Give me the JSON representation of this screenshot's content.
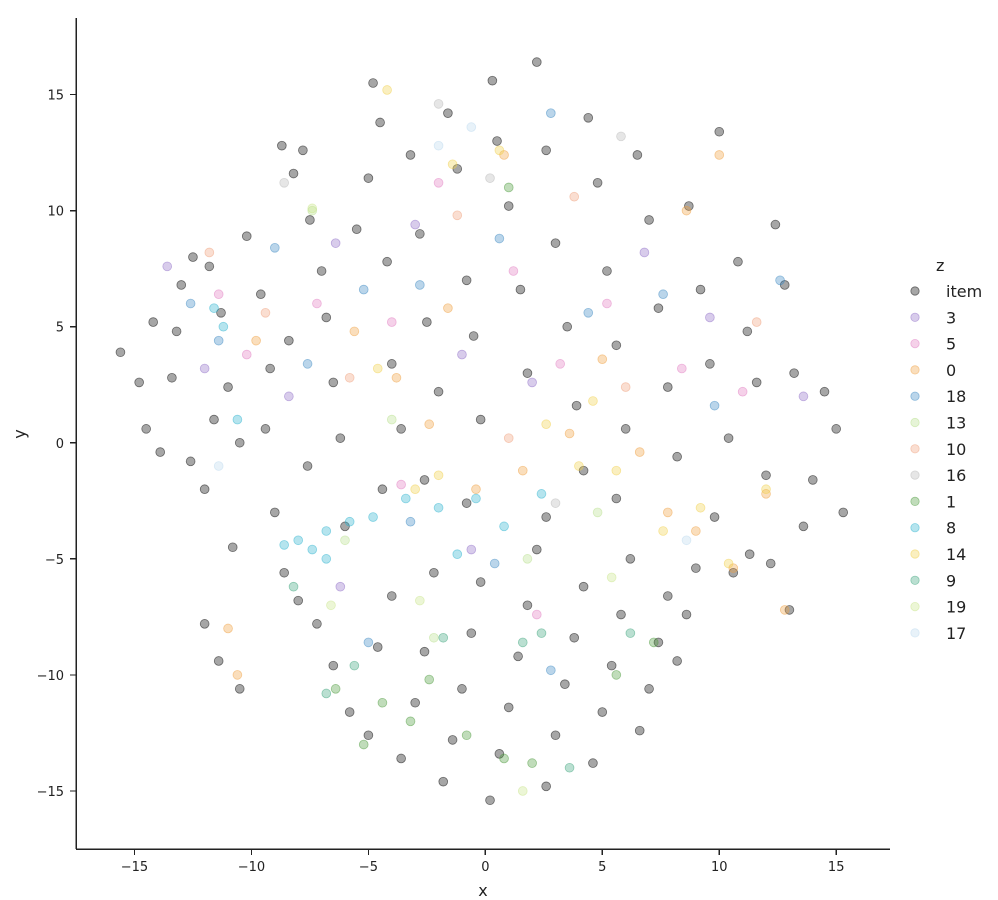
{
  "chart_data": {
    "type": "scatter",
    "xlabel": "x",
    "ylabel": "y",
    "xlim": [
      -17.5,
      17.3
    ],
    "ylim": [
      -17.5,
      18.3
    ],
    "x_ticks": [
      -15,
      -10,
      -5,
      0,
      5,
      10,
      15
    ],
    "x_tick_labels": [
      "−15",
      "−10",
      "−5",
      "0",
      "5",
      "10",
      "15"
    ],
    "y_ticks": [
      -15,
      -10,
      -5,
      0,
      5,
      10,
      15
    ],
    "y_tick_labels": [
      "−15",
      "−10",
      "−5",
      "0",
      "5",
      "10",
      "15"
    ],
    "grid": false,
    "legend_title": "z",
    "legend_placement": "right",
    "marker_alpha": 0.35,
    "series": [
      {
        "name": "item",
        "color": "#000000",
        "points": [
          [
            -15.6,
            3.9
          ],
          [
            -14.8,
            2.6
          ],
          [
            -14.5,
            0.6
          ],
          [
            -13.9,
            -0.4
          ],
          [
            -13.2,
            4.8
          ],
          [
            -13.0,
            6.8
          ],
          [
            -12.5,
            8.0
          ],
          [
            -11.8,
            7.6
          ],
          [
            -11.3,
            5.6
          ],
          [
            -11.0,
            2.4
          ],
          [
            -10.5,
            0.0
          ],
          [
            -10.2,
            8.9
          ],
          [
            -9.6,
            6.4
          ],
          [
            -9.2,
            3.2
          ],
          [
            -8.7,
            12.8
          ],
          [
            -8.2,
            11.6
          ],
          [
            -7.8,
            12.6
          ],
          [
            -7.5,
            9.6
          ],
          [
            -7.0,
            7.4
          ],
          [
            -6.8,
            5.4
          ],
          [
            -6.5,
            2.6
          ],
          [
            -6.2,
            0.2
          ],
          [
            -5.5,
            9.2
          ],
          [
            -5.0,
            11.4
          ],
          [
            -4.8,
            15.5
          ],
          [
            -4.5,
            13.8
          ],
          [
            -4.2,
            7.8
          ],
          [
            -4.0,
            3.4
          ],
          [
            -3.6,
            0.6
          ],
          [
            -3.2,
            12.4
          ],
          [
            -2.8,
            9.0
          ],
          [
            -2.5,
            5.2
          ],
          [
            -2.0,
            2.2
          ],
          [
            -1.6,
            14.2
          ],
          [
            -1.2,
            11.8
          ],
          [
            -0.8,
            7.0
          ],
          [
            -0.5,
            4.6
          ],
          [
            -0.2,
            1.0
          ],
          [
            0.3,
            15.6
          ],
          [
            0.5,
            13.0
          ],
          [
            1.0,
            10.2
          ],
          [
            1.5,
            6.6
          ],
          [
            1.8,
            3.0
          ],
          [
            2.2,
            16.4
          ],
          [
            2.6,
            12.6
          ],
          [
            3.0,
            8.6
          ],
          [
            3.5,
            5.0
          ],
          [
            3.9,
            1.6
          ],
          [
            4.4,
            14.0
          ],
          [
            4.8,
            11.2
          ],
          [
            5.2,
            7.4
          ],
          [
            5.6,
            4.2
          ],
          [
            6.0,
            0.6
          ],
          [
            6.5,
            12.4
          ],
          [
            7.0,
            9.6
          ],
          [
            7.4,
            5.8
          ],
          [
            7.8,
            2.4
          ],
          [
            8.2,
            -0.6
          ],
          [
            8.7,
            10.2
          ],
          [
            9.2,
            6.6
          ],
          [
            9.6,
            3.4
          ],
          [
            10.0,
            13.4
          ],
          [
            10.4,
            0.2
          ],
          [
            10.8,
            7.8
          ],
          [
            11.2,
            4.8
          ],
          [
            11.6,
            2.6
          ],
          [
            12.0,
            -1.4
          ],
          [
            12.4,
            9.4
          ],
          [
            12.8,
            6.8
          ],
          [
            13.2,
            3.0
          ],
          [
            13.6,
            -3.6
          ],
          [
            14.0,
            -1.6
          ],
          [
            14.5,
            2.2
          ],
          [
            15.0,
            0.6
          ],
          [
            15.3,
            -3.0
          ],
          [
            13.0,
            -7.2
          ],
          [
            12.2,
            -5.2
          ],
          [
            11.3,
            -4.8
          ],
          [
            10.6,
            -5.6
          ],
          [
            9.8,
            -3.2
          ],
          [
            -12.0,
            -7.8
          ],
          [
            -11.4,
            -9.4
          ],
          [
            -10.5,
            -10.6
          ],
          [
            -12.0,
            -2.0
          ],
          [
            -10.8,
            -4.5
          ],
          [
            -9.0,
            -3.0
          ],
          [
            -8.6,
            -5.6
          ],
          [
            -8.0,
            -6.8
          ],
          [
            -7.2,
            -7.8
          ],
          [
            -6.5,
            -9.6
          ],
          [
            -5.8,
            -11.6
          ],
          [
            -5.0,
            -12.6
          ],
          [
            -4.6,
            -8.8
          ],
          [
            -4.0,
            -6.6
          ],
          [
            -3.6,
            -13.6
          ],
          [
            -3.0,
            -11.2
          ],
          [
            -2.6,
            -9.0
          ],
          [
            -2.2,
            -5.6
          ],
          [
            -1.8,
            -14.6
          ],
          [
            -1.4,
            -12.8
          ],
          [
            -1.0,
            -10.6
          ],
          [
            -0.6,
            -8.2
          ],
          [
            -0.2,
            -6.0
          ],
          [
            0.2,
            -15.4
          ],
          [
            0.6,
            -13.4
          ],
          [
            1.0,
            -11.4
          ],
          [
            1.4,
            -9.2
          ],
          [
            1.8,
            -7.0
          ],
          [
            2.2,
            -4.6
          ],
          [
            2.6,
            -14.8
          ],
          [
            3.0,
            -12.6
          ],
          [
            3.4,
            -10.4
          ],
          [
            3.8,
            -8.4
          ],
          [
            4.2,
            -6.2
          ],
          [
            4.6,
            -13.8
          ],
          [
            5.0,
            -11.6
          ],
          [
            5.4,
            -9.6
          ],
          [
            5.8,
            -7.4
          ],
          [
            6.2,
            -5.0
          ],
          [
            6.6,
            -12.4
          ],
          [
            7.0,
            -10.6
          ],
          [
            7.4,
            -8.6
          ],
          [
            7.8,
            -6.6
          ],
          [
            8.2,
            -9.4
          ],
          [
            8.6,
            -7.4
          ],
          [
            9.0,
            -5.4
          ],
          [
            5.6,
            -2.4
          ],
          [
            4.2,
            -1.2
          ],
          [
            2.6,
            -3.2
          ],
          [
            -0.8,
            -2.6
          ],
          [
            -2.6,
            -1.6
          ],
          [
            -4.4,
            -2.0
          ],
          [
            -6.0,
            -3.6
          ],
          [
            -7.6,
            -1.0
          ],
          [
            -9.4,
            0.6
          ],
          [
            -11.6,
            1.0
          ],
          [
            -13.4,
            2.8
          ],
          [
            -14.2,
            5.2
          ],
          [
            -12.6,
            -0.8
          ],
          [
            -8.4,
            4.4
          ]
        ]
      },
      {
        "name": "3",
        "color": "#8e6cc7",
        "points": [
          [
            -13.6,
            7.6
          ],
          [
            -12.0,
            3.2
          ],
          [
            -8.4,
            2.0
          ],
          [
            -6.4,
            8.6
          ],
          [
            -3.0,
            9.4
          ],
          [
            -1.0,
            3.8
          ],
          [
            2.0,
            2.6
          ],
          [
            6.8,
            8.2
          ],
          [
            9.6,
            5.4
          ],
          [
            13.6,
            2.0
          ],
          [
            -6.2,
            -6.2
          ],
          [
            -0.6,
            -4.6
          ]
        ]
      },
      {
        "name": "5",
        "color": "#e27cc1",
        "points": [
          [
            -11.4,
            6.4
          ],
          [
            -10.2,
            3.8
          ],
          [
            -7.2,
            6.0
          ],
          [
            -4.0,
            5.2
          ],
          [
            -2.0,
            11.2
          ],
          [
            1.2,
            7.4
          ],
          [
            3.2,
            3.4
          ],
          [
            5.2,
            6.0
          ],
          [
            8.4,
            3.2
          ],
          [
            -3.6,
            -1.8
          ],
          [
            2.2,
            -7.4
          ],
          [
            11.0,
            2.2
          ]
        ]
      },
      {
        "name": "0",
        "color": "#f0a040",
        "points": [
          [
            -11.0,
            -8.0
          ],
          [
            -10.6,
            -10.0
          ],
          [
            -5.6,
            4.8
          ],
          [
            -3.8,
            2.8
          ],
          [
            -2.4,
            0.8
          ],
          [
            -0.4,
            -2.0
          ],
          [
            0.8,
            12.4
          ],
          [
            1.6,
            -1.2
          ],
          [
            3.6,
            0.4
          ],
          [
            5.0,
            3.6
          ],
          [
            6.6,
            -0.4
          ],
          [
            7.8,
            -3.0
          ],
          [
            9.0,
            -3.8
          ],
          [
            10.0,
            12.4
          ],
          [
            10.6,
            -5.4
          ],
          [
            12.0,
            -2.2
          ],
          [
            12.8,
            -7.2
          ],
          [
            8.6,
            10.0
          ],
          [
            -1.6,
            5.8
          ],
          [
            -9.8,
            4.4
          ]
        ]
      },
      {
        "name": "18",
        "color": "#3a88c2",
        "points": [
          [
            -12.6,
            6.0
          ],
          [
            -11.4,
            4.4
          ],
          [
            -9.0,
            8.4
          ],
          [
            -7.6,
            3.4
          ],
          [
            -5.2,
            6.6
          ],
          [
            -2.8,
            6.8
          ],
          [
            0.6,
            8.8
          ],
          [
            2.8,
            14.2
          ],
          [
            4.4,
            5.6
          ],
          [
            7.6,
            6.4
          ],
          [
            9.8,
            1.6
          ],
          [
            12.6,
            7.0
          ],
          [
            -3.2,
            -3.4
          ],
          [
            0.4,
            -5.2
          ],
          [
            2.8,
            -9.8
          ],
          [
            -5.0,
            -8.6
          ]
        ]
      },
      {
        "name": "13",
        "color": "#b8e08c",
        "points": [
          [
            -7.4,
            10.0
          ],
          [
            -4.0,
            1.0
          ],
          [
            1.8,
            -5.0
          ],
          [
            -2.2,
            -8.4
          ],
          [
            4.8,
            -3.0
          ],
          [
            -6.0,
            -4.2
          ]
        ]
      },
      {
        "name": "10",
        "color": "#f0a07c",
        "points": [
          [
            -11.8,
            8.2
          ],
          [
            -9.4,
            5.6
          ],
          [
            -1.2,
            9.8
          ],
          [
            3.8,
            10.6
          ],
          [
            6.0,
            2.4
          ],
          [
            11.6,
            5.2
          ],
          [
            -5.8,
            2.8
          ],
          [
            1.0,
            0.2
          ]
        ]
      },
      {
        "name": "16",
        "color": "#b8b8b8",
        "points": [
          [
            -2.0,
            14.6
          ],
          [
            0.2,
            11.4
          ],
          [
            5.8,
            13.2
          ],
          [
            -8.6,
            11.2
          ],
          [
            3.0,
            -2.6
          ]
        ]
      },
      {
        "name": "1",
        "color": "#4a9a3a",
        "points": [
          [
            -6.4,
            -10.6
          ],
          [
            -4.4,
            -11.2
          ],
          [
            -3.2,
            -12.0
          ],
          [
            -2.4,
            -10.2
          ],
          [
            -0.8,
            -12.6
          ],
          [
            0.8,
            -13.6
          ],
          [
            2.0,
            -13.8
          ],
          [
            5.6,
            -10.0
          ],
          [
            7.2,
            -8.6
          ],
          [
            -5.2,
            -13.0
          ],
          [
            1.0,
            11.0
          ]
        ]
      },
      {
        "name": "8",
        "color": "#2bb3cf",
        "points": [
          [
            -11.6,
            5.8
          ],
          [
            -11.2,
            5.0
          ],
          [
            -8.6,
            -4.4
          ],
          [
            -8.0,
            -4.2
          ],
          [
            -7.4,
            -4.6
          ],
          [
            -6.8,
            -3.8
          ],
          [
            -5.8,
            -3.4
          ],
          [
            -4.8,
            -3.2
          ],
          [
            -3.4,
            -2.4
          ],
          [
            -2.0,
            -2.8
          ],
          [
            -0.4,
            -2.4
          ],
          [
            0.8,
            -3.6
          ],
          [
            2.4,
            -2.2
          ],
          [
            -1.2,
            -4.8
          ],
          [
            -6.8,
            -5.0
          ],
          [
            -10.6,
            1.0
          ]
        ]
      },
      {
        "name": "14",
        "color": "#f2d04a",
        "points": [
          [
            -4.6,
            3.2
          ],
          [
            -2.0,
            -1.4
          ],
          [
            0.6,
            12.6
          ],
          [
            2.6,
            0.8
          ],
          [
            4.0,
            -1.0
          ],
          [
            5.6,
            -1.2
          ],
          [
            7.6,
            -3.8
          ],
          [
            9.2,
            -2.8
          ],
          [
            12.0,
            -2.0
          ],
          [
            10.4,
            -5.2
          ],
          [
            -4.2,
            15.2
          ],
          [
            -1.4,
            12.0
          ],
          [
            4.6,
            1.8
          ],
          [
            -3.0,
            -2.0
          ]
        ]
      },
      {
        "name": "9",
        "color": "#3aa37a",
        "points": [
          [
            -6.8,
            -10.8
          ],
          [
            1.6,
            -8.6
          ],
          [
            2.4,
            -8.2
          ],
          [
            -1.8,
            -8.4
          ],
          [
            -5.6,
            -9.6
          ],
          [
            6.2,
            -8.2
          ],
          [
            -8.2,
            -6.2
          ],
          [
            3.6,
            -14.0
          ]
        ]
      },
      {
        "name": "19",
        "color": "#c9e68a",
        "points": [
          [
            -7.4,
            10.1
          ],
          [
            -6.6,
            -7.0
          ],
          [
            -2.8,
            -6.8
          ],
          [
            5.4,
            -5.8
          ],
          [
            1.6,
            -15.0
          ]
        ]
      },
      {
        "name": "17",
        "color": "#bcd9ef",
        "points": [
          [
            -2.0,
            12.8
          ],
          [
            -11.4,
            -1.0
          ],
          [
            8.6,
            -4.2
          ],
          [
            -0.6,
            13.6
          ]
        ]
      }
    ]
  }
}
